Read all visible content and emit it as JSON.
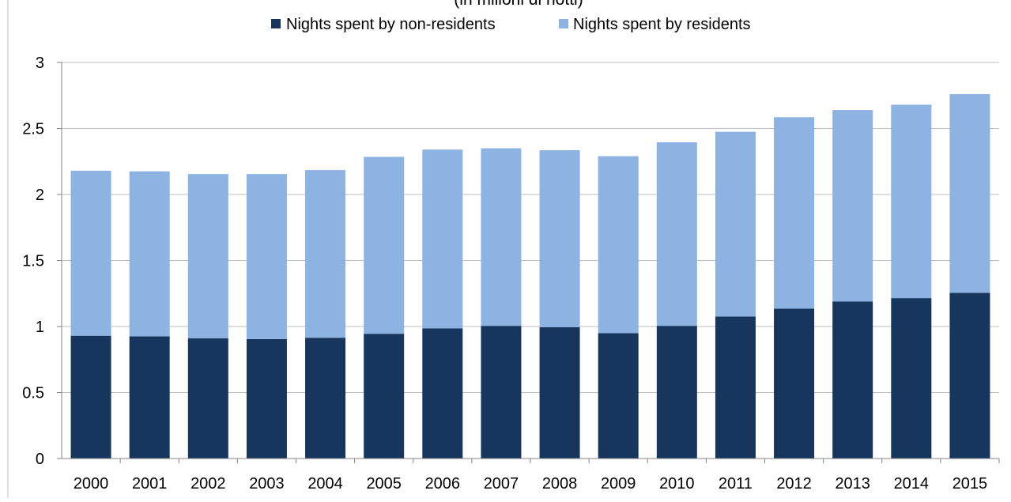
{
  "chart_data": {
    "type": "bar",
    "stacked": true,
    "title": "(in milioni di notti)",
    "categories": [
      "2000",
      "2001",
      "2002",
      "2003",
      "2004",
      "2005",
      "2006",
      "2007",
      "2008",
      "2009",
      "2010",
      "2011",
      "2012",
      "2013",
      "2014",
      "2015"
    ],
    "series": [
      {
        "name": "Nights spent by non-residents",
        "color": "#17365d",
        "values": [
          0.93,
          0.925,
          0.91,
          0.905,
          0.915,
          0.945,
          0.985,
          1.005,
          0.995,
          0.95,
          1.005,
          1.075,
          1.135,
          1.19,
          1.215,
          1.255
        ]
      },
      {
        "name": "Nights spent by residents",
        "color": "#8db3e2",
        "values": [
          1.25,
          1.25,
          1.245,
          1.25,
          1.27,
          1.34,
          1.355,
          1.345,
          1.34,
          1.34,
          1.39,
          1.4,
          1.45,
          1.45,
          1.465,
          1.505
        ]
      }
    ],
    "ylim": [
      0,
      3
    ],
    "yticks": [
      "0",
      "0.5",
      "1",
      "1.5",
      "2",
      "2.5",
      "3"
    ],
    "xlabel": "",
    "ylabel": "",
    "grid": true,
    "legend": "top-center"
  }
}
